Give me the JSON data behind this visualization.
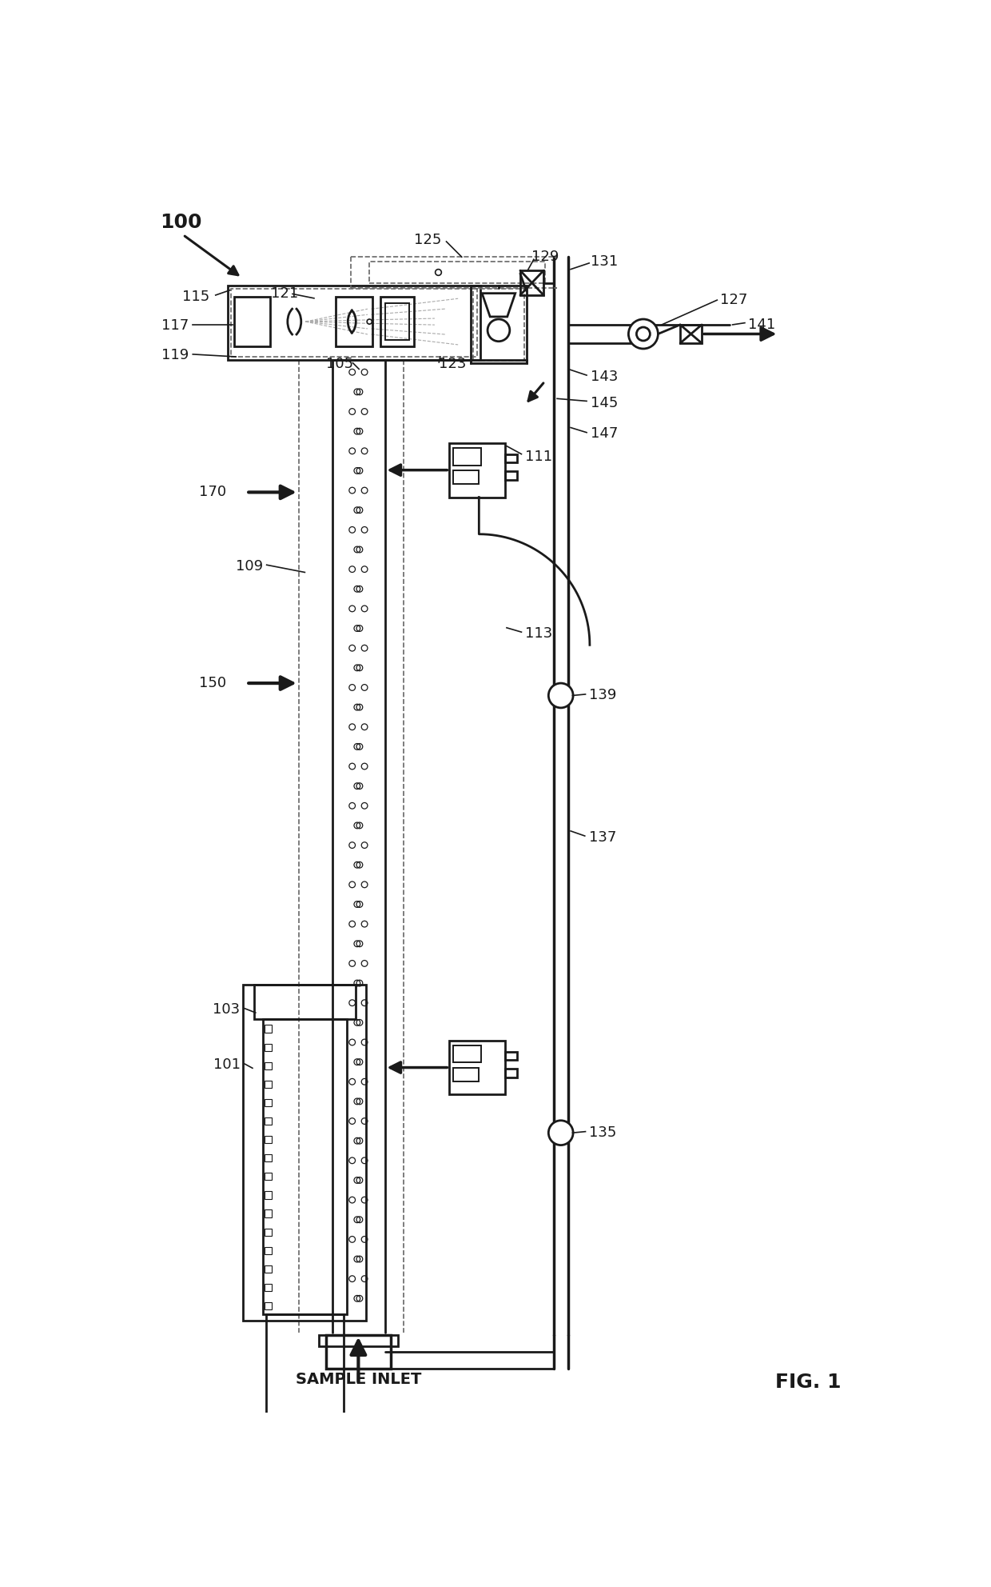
{
  "bg_color": "#ffffff",
  "lc": "#1a1a1a",
  "gray_fill": "#d0d0d0",
  "dashed_color": "#666666",
  "fig_label": "FIG. 1",
  "sample_inlet": "SAMPLE INLET",
  "lw_main": 2.0,
  "lw_thin": 1.4,
  "lw_dashed": 1.2
}
